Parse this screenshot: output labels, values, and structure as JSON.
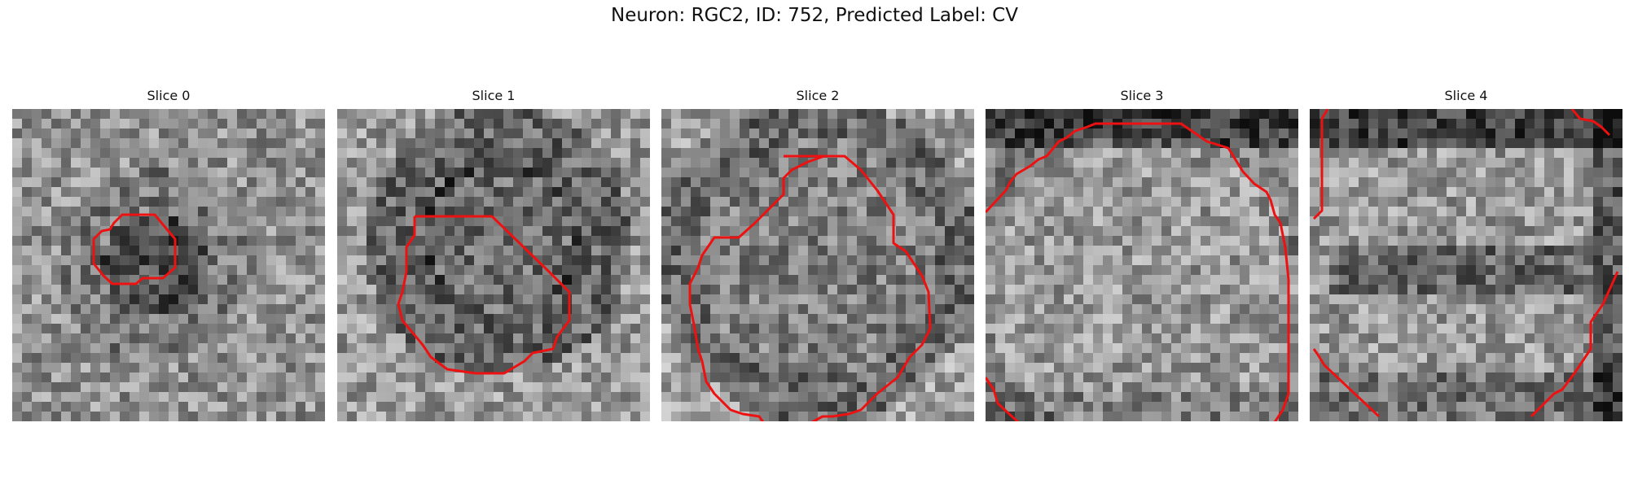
{
  "figure": {
    "title": "Neuron: RGC2, ID: 752, Predicted Label: CV",
    "contour_color": "#ee1111",
    "colormap": "grayscale",
    "panels": [
      {
        "title": "Slice 0",
        "seed": 11
      },
      {
        "title": "Slice 1",
        "seed": 23
      },
      {
        "title": "Slice 2",
        "seed": 37
      },
      {
        "title": "Slice 3",
        "seed": 49
      },
      {
        "title": "Slice 4",
        "seed": 61
      }
    ]
  }
}
